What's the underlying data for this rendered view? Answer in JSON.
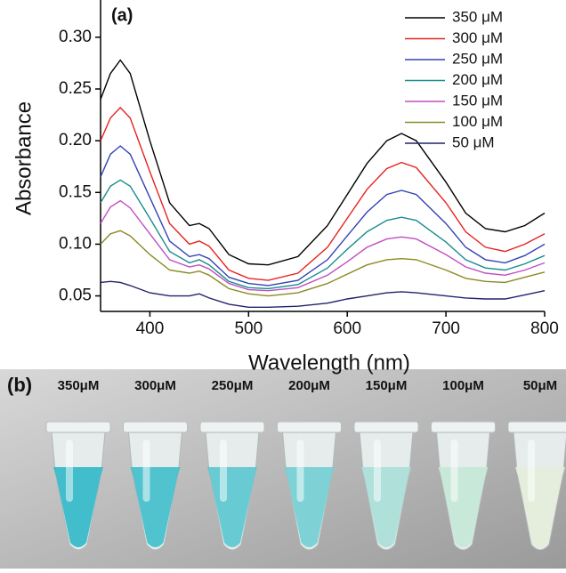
{
  "chart_data": {
    "type": "line",
    "panel_label": "(a)",
    "x_label": "Wavelength (nm)",
    "y_label": "Absorbance",
    "x": [
      350,
      360,
      370,
      380,
      400,
      420,
      440,
      450,
      460,
      480,
      500,
      520,
      550,
      580,
      600,
      620,
      640,
      655,
      670,
      700,
      720,
      740,
      760,
      780,
      800
    ],
    "series": [
      {
        "name": "350 μM",
        "color": "#000000",
        "values": [
          0.24,
          0.265,
          0.278,
          0.265,
          0.2,
          0.14,
          0.118,
          0.12,
          0.115,
          0.09,
          0.081,
          0.08,
          0.088,
          0.118,
          0.148,
          0.178,
          0.2,
          0.207,
          0.2,
          0.16,
          0.13,
          0.115,
          0.112,
          0.118,
          0.13
        ]
      },
      {
        "name": "300 μM",
        "color": "#e52420",
        "values": [
          0.2,
          0.222,
          0.232,
          0.222,
          0.17,
          0.12,
          0.1,
          0.103,
          0.098,
          0.075,
          0.067,
          0.065,
          0.072,
          0.097,
          0.125,
          0.153,
          0.173,
          0.179,
          0.174,
          0.14,
          0.112,
          0.097,
          0.093,
          0.1,
          0.11
        ]
      },
      {
        "name": "250 μM",
        "color": "#3343b3",
        "values": [
          0.165,
          0.187,
          0.195,
          0.187,
          0.145,
          0.103,
          0.088,
          0.09,
          0.086,
          0.068,
          0.062,
          0.06,
          0.065,
          0.085,
          0.108,
          0.131,
          0.148,
          0.152,
          0.148,
          0.12,
          0.097,
          0.085,
          0.082,
          0.089,
          0.1
        ]
      },
      {
        "name": "200 μM",
        "color": "#1a8c8c",
        "values": [
          0.14,
          0.156,
          0.162,
          0.156,
          0.125,
          0.093,
          0.082,
          0.085,
          0.08,
          0.064,
          0.058,
          0.057,
          0.061,
          0.077,
          0.095,
          0.112,
          0.123,
          0.126,
          0.123,
          0.102,
          0.085,
          0.077,
          0.075,
          0.081,
          0.089
        ]
      },
      {
        "name": "150 μM",
        "color": "#c04ec0",
        "values": [
          0.12,
          0.136,
          0.142,
          0.135,
          0.11,
          0.085,
          0.078,
          0.08,
          0.076,
          0.062,
          0.056,
          0.055,
          0.058,
          0.07,
          0.083,
          0.097,
          0.105,
          0.107,
          0.105,
          0.09,
          0.078,
          0.072,
          0.07,
          0.075,
          0.082
        ]
      },
      {
        "name": "100 μM",
        "color": "#8a8a22",
        "values": [
          0.1,
          0.11,
          0.113,
          0.108,
          0.09,
          0.075,
          0.072,
          0.074,
          0.07,
          0.057,
          0.052,
          0.05,
          0.053,
          0.062,
          0.071,
          0.08,
          0.085,
          0.086,
          0.085,
          0.075,
          0.067,
          0.064,
          0.063,
          0.068,
          0.073
        ]
      },
      {
        "name": "50 μM",
        "color": "#22226e",
        "values": [
          0.063,
          0.064,
          0.063,
          0.06,
          0.053,
          0.05,
          0.05,
          0.052,
          0.048,
          0.042,
          0.039,
          0.039,
          0.04,
          0.043,
          0.047,
          0.05,
          0.053,
          0.054,
          0.053,
          0.05,
          0.048,
          0.047,
          0.047,
          0.051,
          0.055
        ]
      }
    ],
    "xlim": [
      350,
      800
    ],
    "xticks": [
      400,
      500,
      600,
      700,
      800
    ],
    "ylim": [
      0.035,
      0.33
    ],
    "yticks": [
      {
        "value": 0.05,
        "label": "0.05"
      },
      {
        "value": 0.1,
        "label": "0.10"
      },
      {
        "value": 0.15,
        "label": "0.15"
      },
      {
        "value": 0.2,
        "label": "0.20"
      },
      {
        "value": 0.25,
        "label": "0.25"
      },
      {
        "value": 0.3,
        "label": "0.30"
      }
    ],
    "legend": "upper right"
  },
  "photo": {
    "panel_label": "(b)",
    "tubes": [
      {
        "label": "350μM",
        "color": "#2fb8c8"
      },
      {
        "label": "300μM",
        "color": "#3fbfcc"
      },
      {
        "label": "250μM",
        "color": "#5ac8d0"
      },
      {
        "label": "200μM",
        "color": "#72cfd3"
      },
      {
        "label": "150μM",
        "color": "#a8e0d8"
      },
      {
        "label": "100μM",
        "color": "#c4e8d8"
      },
      {
        "label": "50μM",
        "color": "#e4eedc"
      }
    ]
  }
}
